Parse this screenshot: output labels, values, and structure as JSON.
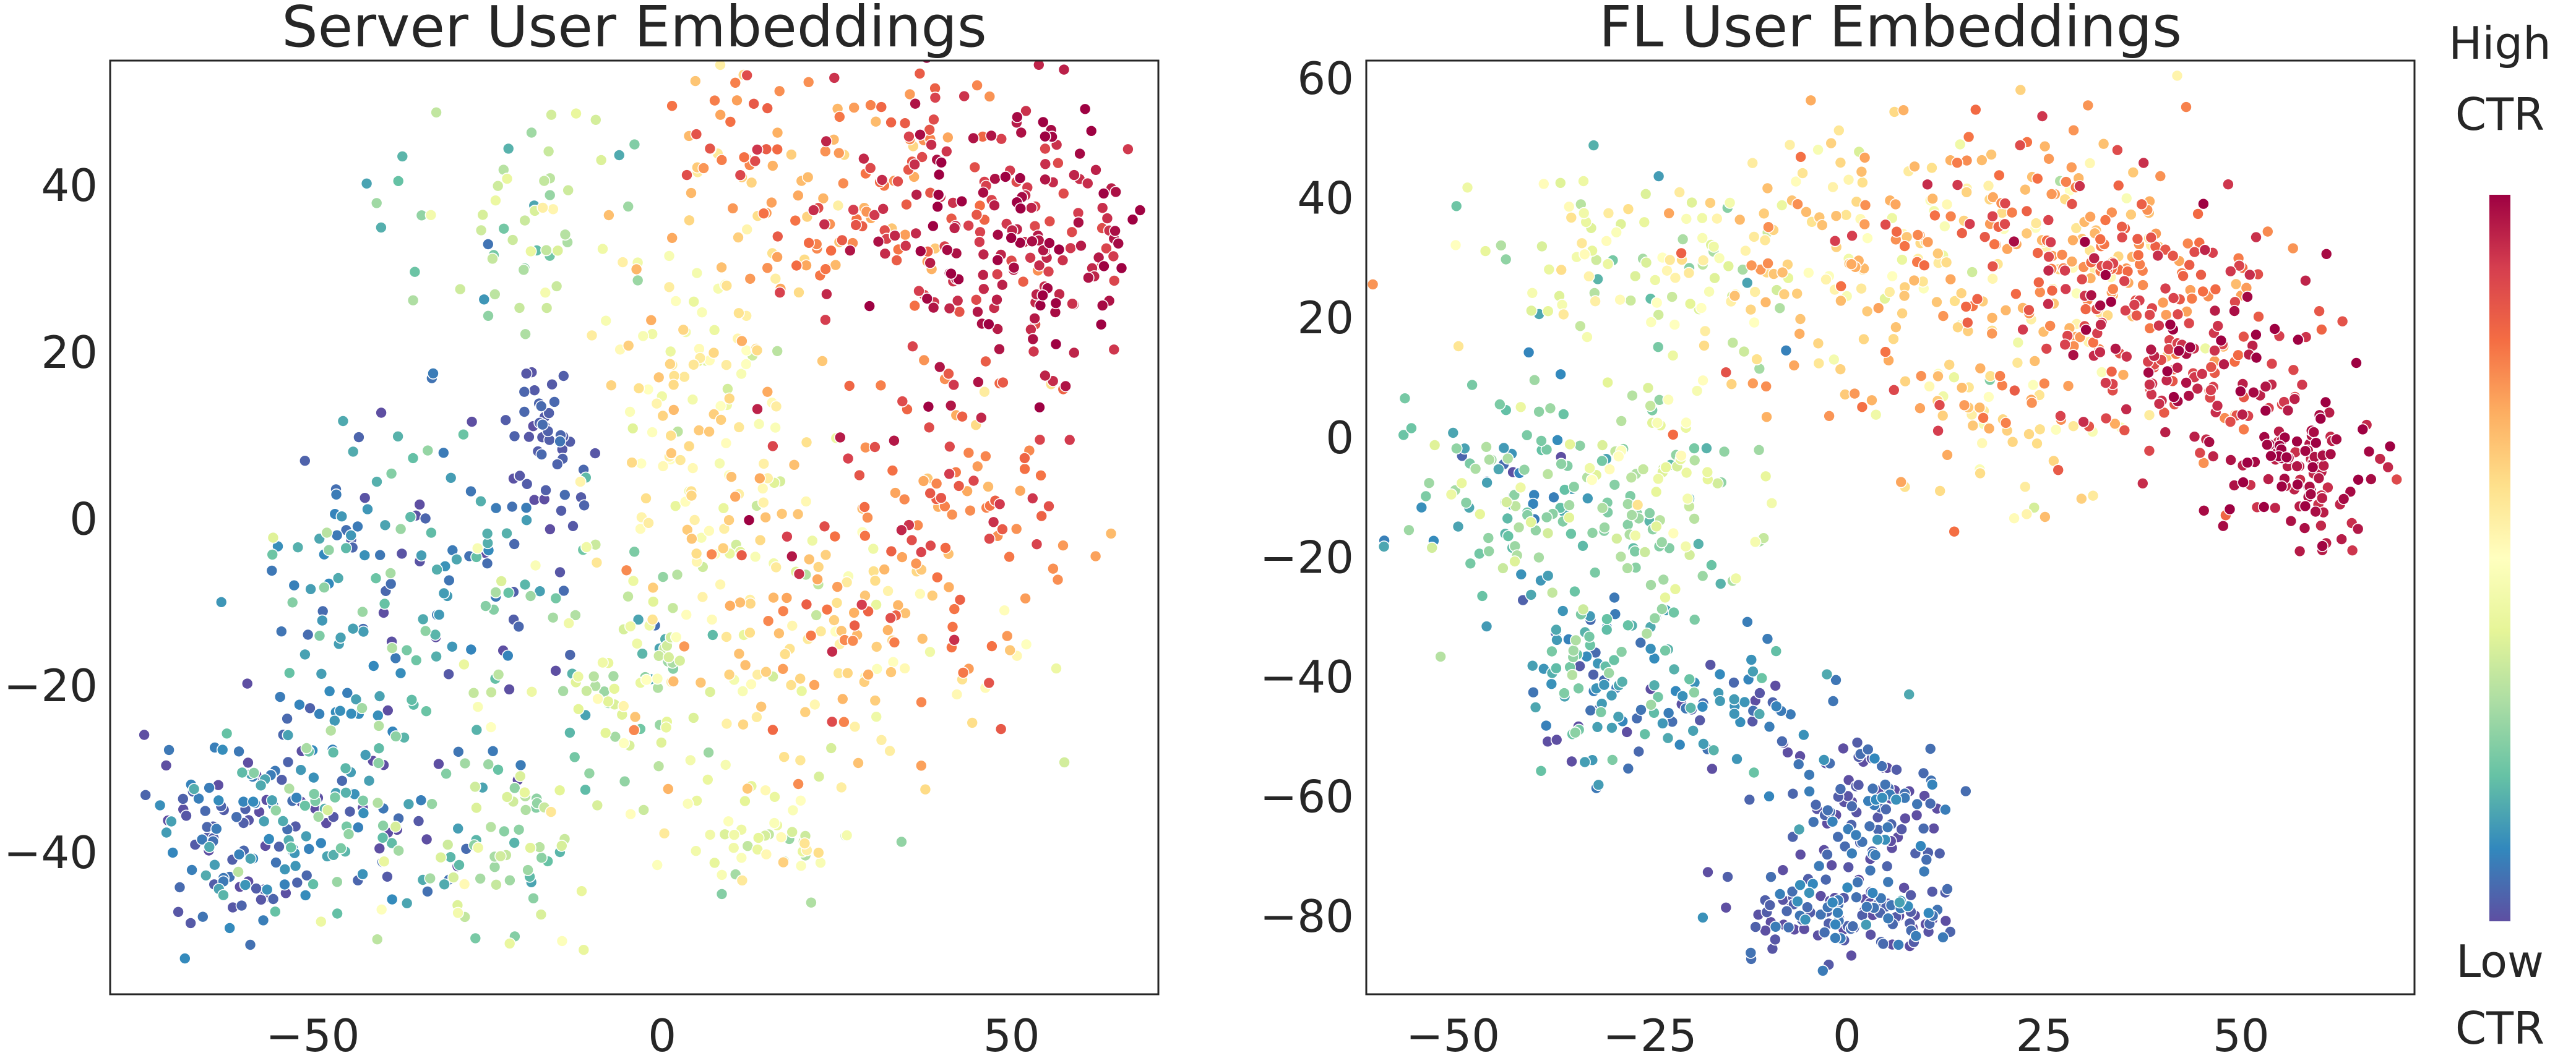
{
  "chart_data": [
    {
      "type": "scatter",
      "title": "Server User Embeddings",
      "xlabel": "",
      "ylabel": "",
      "xlim": [
        -79,
        71
      ],
      "ylim": [
        -57,
        55
      ],
      "xticks": [
        -50,
        0,
        50
      ],
      "xtick_labels": [
        "−50",
        "0",
        "50"
      ],
      "yticks": [
        -40,
        -20,
        0,
        20,
        40
      ],
      "ytick_labels": [
        "−40",
        "−20",
        "0",
        "20",
        "40"
      ],
      "grid": false,
      "color_metric": "CTR (0 = low, 1 = high)",
      "clusters": [
        {
          "cx": 52,
          "cy": 33,
          "sx": 9,
          "sy": 9,
          "c": 0.95,
          "cs": 0.05,
          "n": 170
        },
        {
          "cx": 38,
          "cy": 40,
          "sx": 9,
          "sy": 9,
          "c": 0.85,
          "cs": 0.08,
          "n": 90
        },
        {
          "cx": 15,
          "cy": 40,
          "sx": 10,
          "sy": 9,
          "c": 0.72,
          "cs": 0.1,
          "n": 110
        },
        {
          "cx": 40,
          "cy": 3,
          "sx": 11,
          "sy": 9,
          "c": 0.8,
          "cs": 0.08,
          "n": 110
        },
        {
          "cx": 28,
          "cy": -15,
          "sx": 13,
          "sy": 9,
          "c": 0.63,
          "cs": 0.12,
          "n": 130
        },
        {
          "cx": 3,
          "cy": 17,
          "sx": 8,
          "sy": 8,
          "c": 0.55,
          "cs": 0.07,
          "n": 70
        },
        {
          "cx": 10,
          "cy": -5,
          "sx": 9,
          "sy": 15,
          "c": 0.5,
          "cs": 0.1,
          "n": 90
        },
        {
          "cx": -8,
          "cy": -18,
          "sx": 9,
          "sy": 9,
          "c": 0.38,
          "cs": 0.1,
          "n": 90
        },
        {
          "cx": 15,
          "cy": -38,
          "sx": 8,
          "sy": 3,
          "c": 0.42,
          "cs": 0.1,
          "n": 50
        },
        {
          "cx": -20,
          "cy": 36,
          "sx": 10,
          "sy": 7,
          "c": 0.3,
          "cs": 0.1,
          "n": 60
        },
        {
          "cx": -45,
          "cy": -8,
          "sx": 8,
          "sy": 10,
          "c": 0.15,
          "cs": 0.1,
          "n": 80
        },
        {
          "cx": -28,
          "cy": -3,
          "sx": 10,
          "sy": 8,
          "c": 0.08,
          "cs": 0.07,
          "n": 70
        },
        {
          "cx": -16,
          "cy": 10,
          "sx": 3,
          "sy": 3,
          "c": 0.03,
          "cs": 0.02,
          "n": 40
        },
        {
          "cx": -60,
          "cy": -37,
          "sx": 7,
          "sy": 6,
          "c": 0.06,
          "cs": 0.06,
          "n": 120
        },
        {
          "cx": -42,
          "cy": -32,
          "sx": 11,
          "sy": 8,
          "c": 0.14,
          "cs": 0.1,
          "n": 110
        },
        {
          "cx": -22,
          "cy": -40,
          "sx": 7,
          "sy": 6,
          "c": 0.3,
          "cs": 0.1,
          "n": 60
        }
      ]
    },
    {
      "type": "scatter",
      "title": "FL User Embeddings",
      "xlabel": "",
      "ylabel": "",
      "xlim": [
        -61,
        72
      ],
      "ylim": [
        -93,
        63
      ],
      "xticks": [
        -50,
        -25,
        0,
        25,
        50
      ],
      "xtick_labels": [
        "−50",
        "−25",
        "0",
        "25",
        "50"
      ],
      "yticks": [
        -80,
        -60,
        -40,
        -20,
        0,
        20,
        40,
        60
      ],
      "ytick_labels": [
        "−80",
        "−60",
        "−40",
        "−20",
        "0",
        "20",
        "40",
        "60"
      ],
      "grid": false,
      "color_metric": "CTR (0 = low, 1 = high)",
      "clusters": [
        {
          "cx": 58,
          "cy": -5,
          "sx": 5,
          "sy": 6,
          "c": 0.97,
          "cs": 0.03,
          "n": 110
        },
        {
          "cx": 45,
          "cy": 12,
          "sx": 8,
          "sy": 10,
          "c": 0.9,
          "cs": 0.07,
          "n": 140
        },
        {
          "cx": 35,
          "cy": 28,
          "sx": 9,
          "sy": 7,
          "c": 0.8,
          "cs": 0.1,
          "n": 120
        },
        {
          "cx": 20,
          "cy": 35,
          "sx": 12,
          "sy": 9,
          "c": 0.68,
          "cs": 0.12,
          "n": 130
        },
        {
          "cx": 0,
          "cy": 30,
          "sx": 10,
          "sy": 10,
          "c": 0.6,
          "cs": 0.1,
          "n": 110
        },
        {
          "cx": 18,
          "cy": 8,
          "sx": 12,
          "sy": 8,
          "c": 0.65,
          "cs": 0.12,
          "n": 110
        },
        {
          "cx": -25,
          "cy": 28,
          "sx": 10,
          "sy": 8,
          "c": 0.42,
          "cs": 0.12,
          "n": 110
        },
        {
          "cx": -40,
          "cy": -10,
          "sx": 9,
          "sy": 10,
          "c": 0.22,
          "cs": 0.1,
          "n": 130
        },
        {
          "cx": -22,
          "cy": -10,
          "sx": 6,
          "sy": 8,
          "c": 0.32,
          "cs": 0.1,
          "n": 90
        },
        {
          "cx": -32,
          "cy": -40,
          "sx": 5,
          "sy": 8,
          "c": 0.14,
          "cs": 0.08,
          "n": 90
        },
        {
          "cx": -15,
          "cy": -45,
          "sx": 7,
          "sy": 6,
          "c": 0.08,
          "cs": 0.06,
          "n": 70
        },
        {
          "cx": 3,
          "cy": -62,
          "sx": 5,
          "sy": 6,
          "c": 0.04,
          "cs": 0.04,
          "n": 110
        },
        {
          "cx": -5,
          "cy": -79,
          "sx": 5,
          "sy": 4,
          "c": 0.04,
          "cs": 0.04,
          "n": 80
        },
        {
          "cx": 7,
          "cy": -80,
          "sx": 4,
          "sy": 3,
          "c": 0.04,
          "cs": 0.04,
          "n": 50
        }
      ]
    }
  ],
  "colorbar": {
    "colormap": "Spectral_r",
    "top_label_line1": "High",
    "top_label_line2": "CTR",
    "bottom_label_line1": "Low",
    "bottom_label_line2": "CTR",
    "stops": [
      "#5e4fa2",
      "#3288bd",
      "#66c2a5",
      "#abdda4",
      "#e6f598",
      "#ffffbf",
      "#fee08b",
      "#fdae61",
      "#f46d43",
      "#d53e4f",
      "#9e0142"
    ]
  }
}
